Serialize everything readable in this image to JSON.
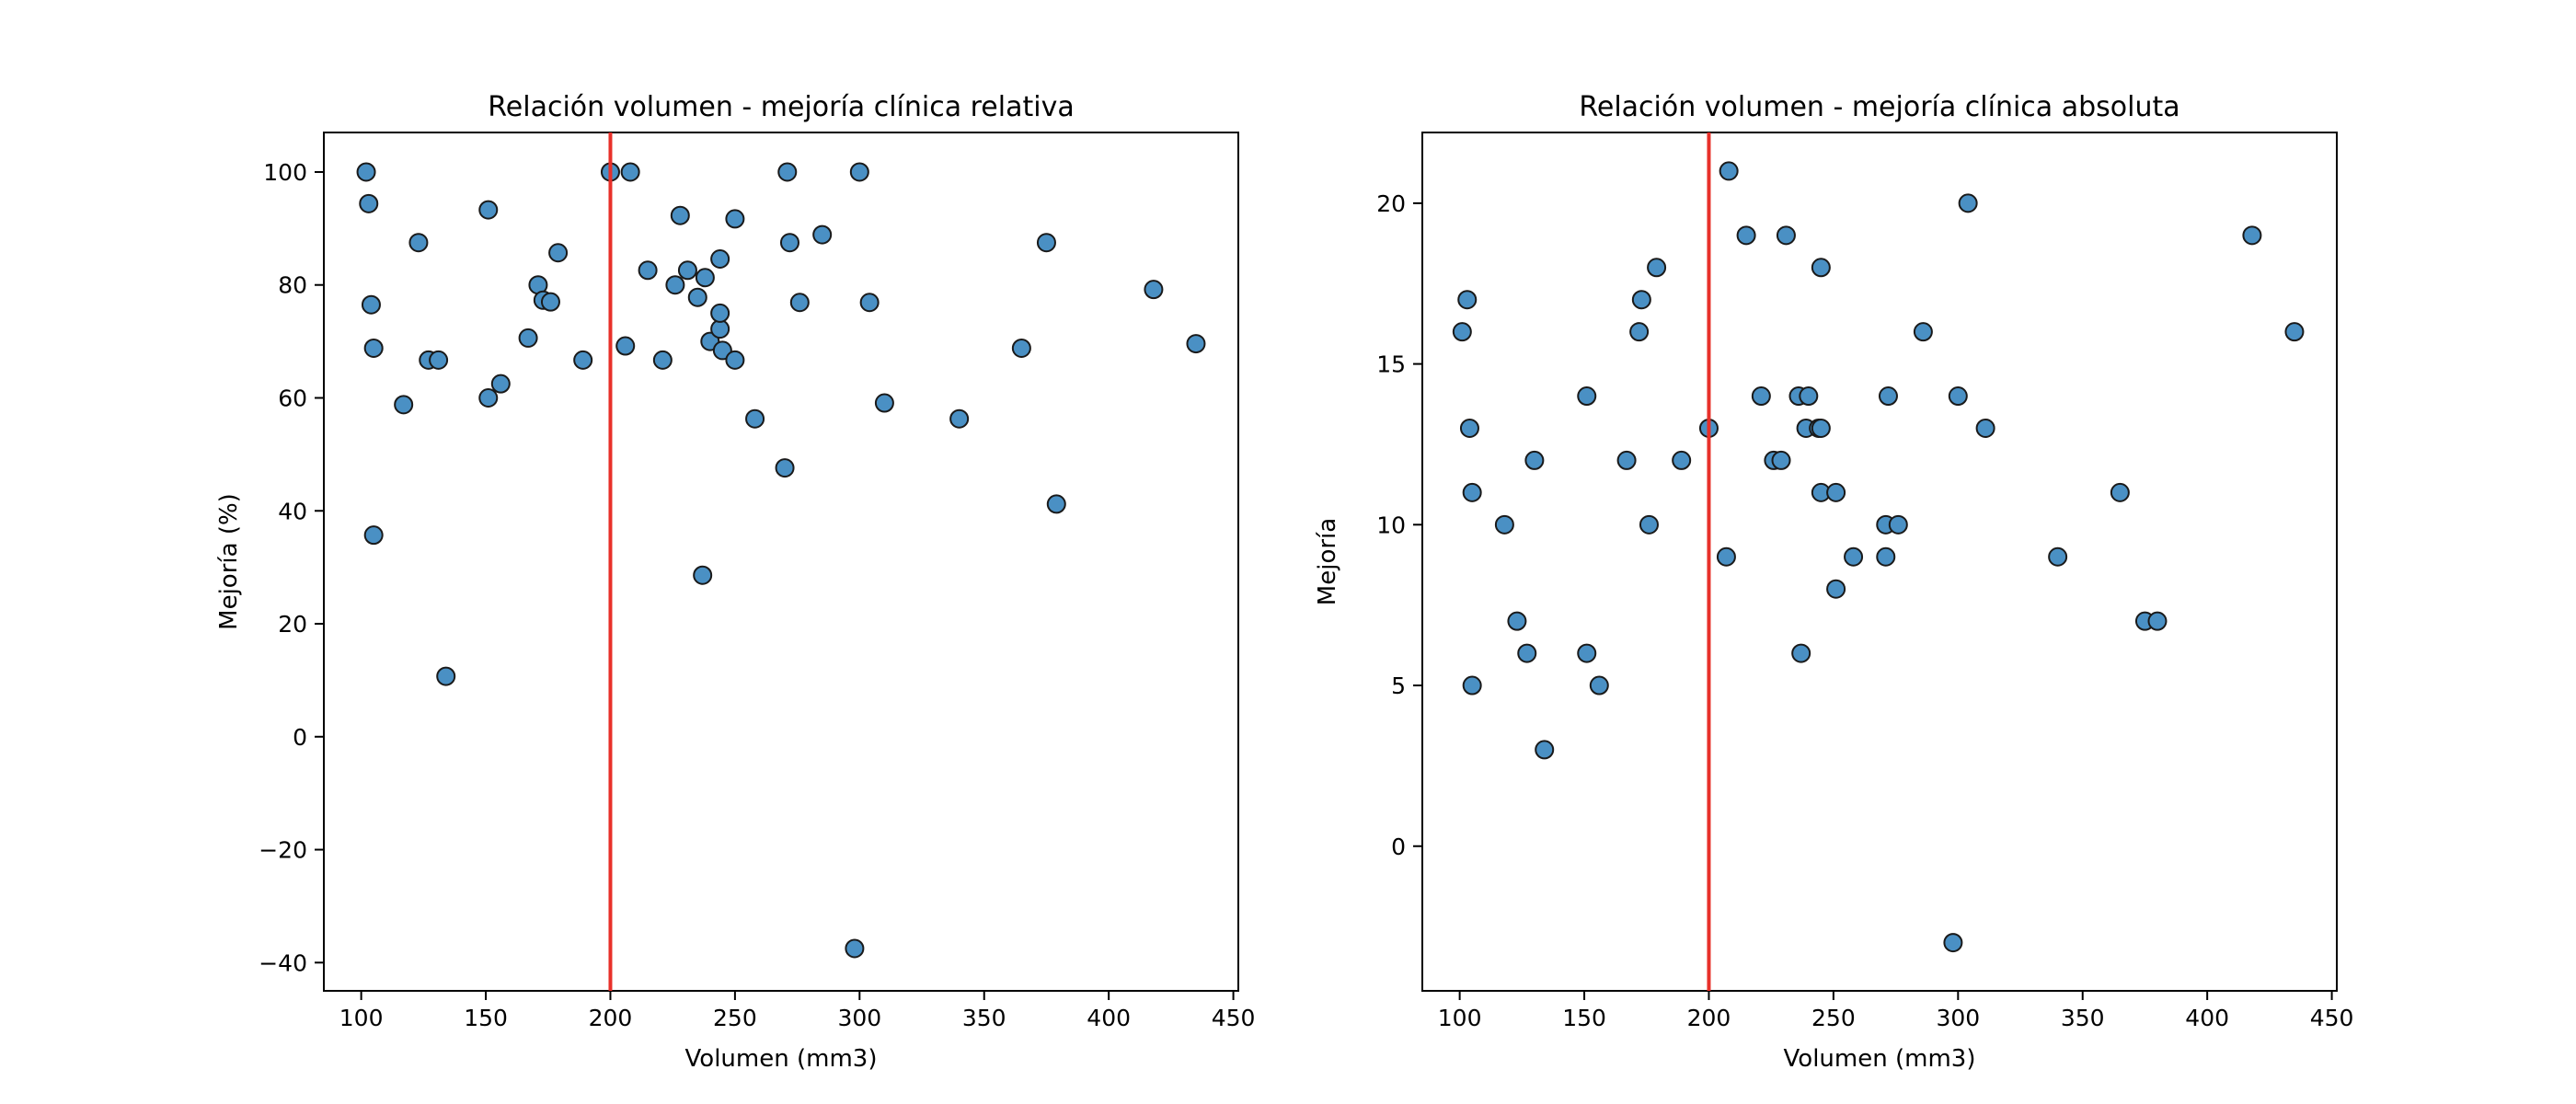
{
  "chart_data": [
    {
      "type": "scatter",
      "title": "Relación volumen - mejoría clínica relativa",
      "xlabel": "Volumen (mm3)",
      "ylabel": "Mejoría (%)",
      "xlim": [
        85,
        452
      ],
      "ylim": [
        -45,
        107
      ],
      "xticks": [
        100,
        150,
        200,
        250,
        300,
        350,
        400,
        450
      ],
      "yticks": [
        -40,
        -20,
        0,
        20,
        40,
        60,
        80,
        100
      ],
      "grid": false,
      "marker_color": "#4a90c4",
      "marker_edge_color": "#1a1a1a",
      "reference_line": {
        "orientation": "vertical",
        "x": 200,
        "color": "#e8302a"
      },
      "points": [
        [
          102,
          100
        ],
        [
          103,
          94.4
        ],
        [
          104,
          76.5
        ],
        [
          105,
          68.8
        ],
        [
          105,
          35.7
        ],
        [
          117,
          58.8
        ],
        [
          123,
          87.5
        ],
        [
          127,
          66.7
        ],
        [
          131,
          66.7
        ],
        [
          134,
          10.7
        ],
        [
          151,
          93.3
        ],
        [
          151,
          60
        ],
        [
          156,
          62.5
        ],
        [
          167,
          70.6
        ],
        [
          171,
          80
        ],
        [
          173,
          77.3
        ],
        [
          176,
          77
        ],
        [
          179,
          85.7
        ],
        [
          189,
          66.7
        ],
        [
          200,
          100
        ],
        [
          206,
          69.2
        ],
        [
          208,
          100
        ],
        [
          215,
          82.6
        ],
        [
          221,
          66.7
        ],
        [
          226,
          80
        ],
        [
          228,
          92.3
        ],
        [
          231,
          82.6
        ],
        [
          235,
          77.8
        ],
        [
          237,
          28.6
        ],
        [
          238,
          81.3
        ],
        [
          240,
          70
        ],
        [
          244,
          72.2
        ],
        [
          244,
          75
        ],
        [
          244,
          84.6
        ],
        [
          245,
          68.4
        ],
        [
          250,
          91.7
        ],
        [
          250,
          66.7
        ],
        [
          258,
          56.3
        ],
        [
          270,
          47.6
        ],
        [
          271,
          100
        ],
        [
          272,
          87.5
        ],
        [
          276,
          76.9
        ],
        [
          285,
          88.9
        ],
        [
          298,
          -37.5
        ],
        [
          300,
          100
        ],
        [
          304,
          76.9
        ],
        [
          310,
          59.1
        ],
        [
          340,
          56.3
        ],
        [
          365,
          68.8
        ],
        [
          375,
          87.5
        ],
        [
          379,
          41.2
        ],
        [
          418,
          79.2
        ],
        [
          435,
          69.6
        ]
      ]
    },
    {
      "type": "scatter",
      "title": "Relación volumen - mejoría clínica absoluta",
      "xlabel": "Volumen (mm3)",
      "ylabel": "Mejoría",
      "xlim": [
        85,
        452
      ],
      "ylim": [
        -4.5,
        22.2
      ],
      "xticks": [
        100,
        150,
        200,
        250,
        300,
        350,
        400,
        450
      ],
      "yticks": [
        0,
        5,
        10,
        15,
        20
      ],
      "grid": false,
      "marker_color": "#4a90c4",
      "marker_edge_color": "#1a1a1a",
      "reference_line": {
        "orientation": "vertical",
        "x": 200,
        "color": "#e8302a"
      },
      "points": [
        [
          101,
          16
        ],
        [
          103,
          17
        ],
        [
          104,
          13
        ],
        [
          105,
          11
        ],
        [
          105,
          5
        ],
        [
          118,
          10
        ],
        [
          123,
          7
        ],
        [
          127,
          6
        ],
        [
          130,
          12
        ],
        [
          134,
          3
        ],
        [
          151,
          14
        ],
        [
          151,
          6
        ],
        [
          156,
          5
        ],
        [
          167,
          12
        ],
        [
          172,
          16
        ],
        [
          173,
          17
        ],
        [
          176,
          10
        ],
        [
          179,
          18
        ],
        [
          189,
          12
        ],
        [
          200,
          13
        ],
        [
          207,
          9
        ],
        [
          208,
          21
        ],
        [
          215,
          19
        ],
        [
          221,
          14
        ],
        [
          226,
          12
        ],
        [
          229,
          12
        ],
        [
          231,
          19
        ],
        [
          236,
          14
        ],
        [
          237,
          6
        ],
        [
          239,
          13
        ],
        [
          240,
          14
        ],
        [
          244,
          13
        ],
        [
          245,
          13
        ],
        [
          245,
          18
        ],
        [
          245,
          11
        ],
        [
          251,
          11
        ],
        [
          251,
          8
        ],
        [
          258,
          9
        ],
        [
          271,
          10
        ],
        [
          271,
          9
        ],
        [
          272,
          14
        ],
        [
          276,
          10
        ],
        [
          286,
          16
        ],
        [
          298,
          -3
        ],
        [
          300,
          14
        ],
        [
          304,
          20
        ],
        [
          311,
          13
        ],
        [
          340,
          9
        ],
        [
          365,
          11
        ],
        [
          375,
          7
        ],
        [
          380,
          7
        ],
        [
          418,
          19
        ],
        [
          435,
          16
        ]
      ]
    }
  ]
}
